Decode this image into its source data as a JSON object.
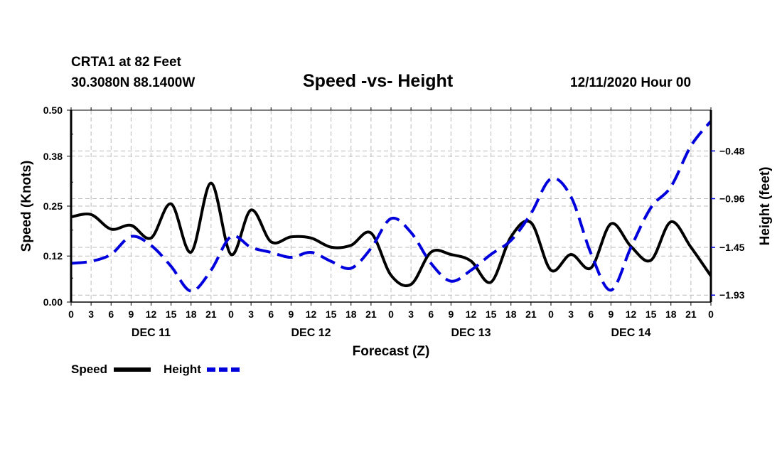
{
  "header": {
    "station": "CRTA1 at 82 Feet",
    "coords": "30.3080N 88.1400W",
    "title": "Speed -vs- Height",
    "date": "12/11/2020 Hour 00"
  },
  "chart_data": {
    "type": "line",
    "title": "Speed -vs- Height",
    "xlabel": "Forecast (Z)",
    "ylabel": "Speed (Knots)",
    "y2label": "Height (feet)",
    "x_hours": [
      0,
      3,
      6,
      9,
      12,
      15,
      18,
      21,
      24,
      27,
      30,
      33,
      36,
      39,
      42,
      45,
      48,
      51,
      54,
      57,
      60,
      63,
      66,
      69,
      72,
      75,
      78,
      81,
      84,
      87,
      90,
      93,
      96
    ],
    "x_tick_labels": [
      "0",
      "3",
      "6",
      "9",
      "12",
      "15",
      "18",
      "21",
      "0",
      "3",
      "6",
      "9",
      "12",
      "15",
      "18",
      "21",
      "0",
      "3",
      "6",
      "9",
      "12",
      "15",
      "18",
      "21",
      "0",
      "3",
      "6",
      "9",
      "12",
      "15",
      "18",
      "21",
      "0"
    ],
    "day_labels": [
      {
        "label": "DEC 11",
        "center_hour": 12
      },
      {
        "label": "DEC 12",
        "center_hour": 36
      },
      {
        "label": "DEC 13",
        "center_hour": 60
      },
      {
        "label": "DEC 14",
        "center_hour": 84
      }
    ],
    "xlim": [
      0,
      96
    ],
    "ylim": [
      0.0,
      0.5
    ],
    "y_ticks": [
      0.0,
      0.12,
      0.25,
      0.38,
      0.5
    ],
    "y_tick_labels": [
      "0.00",
      "0.12",
      "0.25",
      "0.38",
      "0.50"
    ],
    "y2lim": [
      -2.0,
      -0.07
    ],
    "y2_ticks": [
      -1.93,
      -1.45,
      -0.96,
      -0.48
    ],
    "y2_tick_labels": [
      "-1.93",
      "-1.45",
      "-0.96",
      "-0.48"
    ],
    "grid": true,
    "legend_position": "bottom-left",
    "series": [
      {
        "name": "Speed",
        "axis": "left",
        "color": "#000000",
        "style": "solid",
        "values": [
          0.222,
          0.228,
          0.19,
          0.2,
          0.167,
          0.256,
          0.13,
          0.31,
          0.124,
          0.24,
          0.157,
          0.17,
          0.167,
          0.143,
          0.148,
          0.18,
          0.07,
          0.046,
          0.13,
          0.124,
          0.107,
          0.052,
          0.17,
          0.207,
          0.083,
          0.124,
          0.089,
          0.204,
          0.145,
          0.109,
          0.209,
          0.143,
          0.068
        ]
      },
      {
        "name": "Height",
        "axis": "right",
        "color": "#0000dd",
        "style": "dashed",
        "values": [
          -1.61,
          -1.59,
          -1.52,
          -1.34,
          -1.43,
          -1.64,
          -1.89,
          -1.68,
          -1.34,
          -1.45,
          -1.5,
          -1.55,
          -1.5,
          -1.59,
          -1.66,
          -1.46,
          -1.16,
          -1.3,
          -1.61,
          -1.79,
          -1.68,
          -1.52,
          -1.38,
          -1.11,
          -0.76,
          -0.94,
          -1.51,
          -1.88,
          -1.45,
          -1.05,
          -0.84,
          -0.43,
          -0.18
        ]
      }
    ]
  }
}
